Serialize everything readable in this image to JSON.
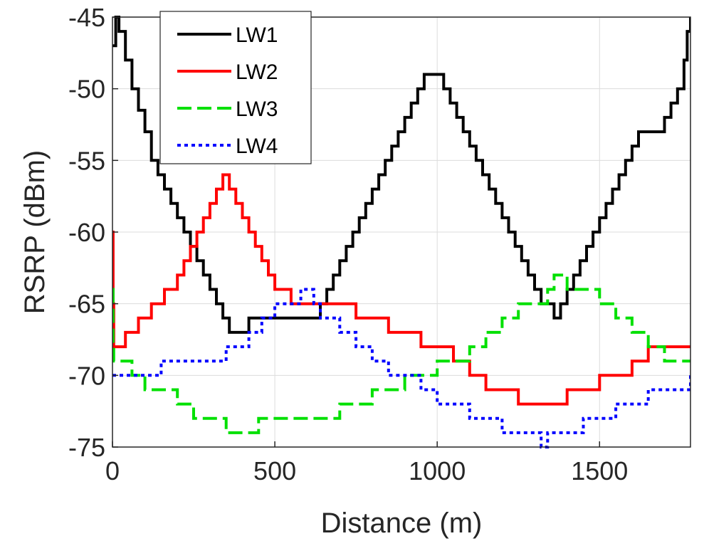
{
  "chart_data": {
    "type": "line",
    "xlabel": "Distance (m)",
    "ylabel": "RSRP (dBm)",
    "xlim": [
      0,
      1780
    ],
    "ylim": [
      -75,
      -45
    ],
    "xticks": [
      0,
      500,
      1000,
      1500
    ],
    "yticks": [
      -45,
      -50,
      -55,
      -60,
      -65,
      -70,
      -75
    ],
    "grid": true,
    "legend_position": "top-left",
    "series": [
      {
        "name": "LW1",
        "color": "#000000",
        "dash": "solid",
        "x": [
          0,
          10,
          20,
          40,
          60,
          80,
          100,
          120,
          140,
          160,
          180,
          200,
          220,
          240,
          260,
          280,
          300,
          320,
          340,
          360,
          380,
          400,
          420,
          440,
          460,
          480,
          500,
          520,
          540,
          560,
          580,
          600,
          620,
          640,
          660,
          680,
          700,
          720,
          740,
          760,
          780,
          800,
          820,
          840,
          860,
          880,
          900,
          920,
          940,
          960,
          980,
          1000,
          1020,
          1040,
          1060,
          1080,
          1100,
          1120,
          1140,
          1160,
          1180,
          1200,
          1220,
          1240,
          1260,
          1280,
          1300,
          1320,
          1340,
          1360,
          1380,
          1400,
          1420,
          1440,
          1460,
          1480,
          1500,
          1520,
          1540,
          1560,
          1580,
          1600,
          1620,
          1640,
          1660,
          1680,
          1700,
          1720,
          1740,
          1760,
          1770,
          1780
        ],
        "y": [
          -47,
          -45,
          -46,
          -48,
          -50,
          -51.5,
          -53,
          -55,
          -56,
          -57,
          -58,
          -59,
          -60,
          -61,
          -62,
          -63,
          -64,
          -65,
          -66,
          -67,
          -67,
          -67,
          -66,
          -66,
          -66,
          -66,
          -66,
          -66,
          -66,
          -66,
          -66,
          -66,
          -66,
          -65,
          -64,
          -63,
          -62,
          -61,
          -60,
          -59,
          -58,
          -57,
          -56,
          -55,
          -54,
          -53,
          -52,
          -51,
          -50,
          -49,
          -49,
          -49,
          -50,
          -51,
          -52,
          -53,
          -54,
          -55,
          -56,
          -57,
          -58,
          -59,
          -60,
          -61,
          -62,
          -63,
          -64,
          -65,
          -65,
          -66,
          -65,
          -64,
          -63,
          -62,
          -61,
          -60,
          -59,
          -58,
          -57,
          -56,
          -55,
          -54,
          -53,
          -53,
          -53,
          -53,
          -52,
          -51,
          -50,
          -48,
          -46,
          -45
        ]
      },
      {
        "name": "LW2",
        "color": "#ff0000",
        "dash": "solid",
        "x": [
          0,
          2,
          4,
          20,
          40,
          60,
          80,
          100,
          120,
          140,
          160,
          180,
          200,
          220,
          240,
          260,
          280,
          300,
          320,
          340,
          360,
          380,
          400,
          420,
          440,
          460,
          480,
          500,
          550,
          600,
          650,
          700,
          750,
          800,
          850,
          900,
          950,
          1000,
          1050,
          1100,
          1150,
          1200,
          1250,
          1300,
          1350,
          1400,
          1450,
          1500,
          1550,
          1600,
          1650,
          1700,
          1780
        ],
        "y": [
          -60,
          -65,
          -68,
          -68,
          -67,
          -67,
          -66,
          -66,
          -65,
          -65,
          -64,
          -64,
          -63,
          -62,
          -61,
          -60,
          -59,
          -58,
          -57,
          -56,
          -57,
          -58,
          -59,
          -60,
          -61,
          -62,
          -63,
          -64,
          -65,
          -65,
          -65,
          -65,
          -66,
          -66,
          -67,
          -67,
          -68,
          -68,
          -69,
          -70,
          -71,
          -71,
          -72,
          -72,
          -72,
          -71,
          -71,
          -70,
          -70,
          -69,
          -68,
          -68,
          -68
        ]
      },
      {
        "name": "LW3",
        "color": "#00e000",
        "dash": "dashed",
        "x": [
          0,
          2,
          4,
          20,
          60,
          100,
          150,
          200,
          250,
          300,
          350,
          400,
          450,
          500,
          550,
          600,
          650,
          700,
          750,
          800,
          850,
          900,
          950,
          1000,
          1050,
          1100,
          1150,
          1200,
          1250,
          1300,
          1340,
          1360,
          1400,
          1450,
          1500,
          1550,
          1600,
          1650,
          1700,
          1780
        ],
        "y": [
          -64,
          -68,
          -69,
          -69,
          -70,
          -71,
          -71,
          -72,
          -73,
          -73,
          -74,
          -74,
          -73,
          -73,
          -73,
          -73,
          -73,
          -72,
          -72,
          -71,
          -71,
          -70,
          -70,
          -69,
          -69,
          -68,
          -67,
          -66,
          -65,
          -65,
          -64,
          -63,
          -64,
          -64,
          -65,
          -66,
          -67,
          -68,
          -69,
          -69
        ]
      },
      {
        "name": "LW4",
        "color": "#0000ff",
        "dash": "dotted",
        "x": [
          0,
          2,
          4,
          50,
          100,
          150,
          200,
          250,
          300,
          350,
          380,
          420,
          460,
          500,
          540,
          580,
          600,
          620,
          640,
          660,
          700,
          750,
          800,
          850,
          900,
          950,
          1000,
          1050,
          1100,
          1150,
          1200,
          1250,
          1300,
          1320,
          1340,
          1360,
          1400,
          1450,
          1500,
          1550,
          1600,
          1650,
          1700,
          1780
        ],
        "y": [
          -70,
          -70,
          -70,
          -70,
          -70,
          -69,
          -69,
          -69,
          -69,
          -68,
          -68,
          -67,
          -66,
          -65,
          -65,
          -64,
          -64,
          -65,
          -66,
          -66,
          -67,
          -68,
          -69,
          -70,
          -70,
          -71,
          -72,
          -72,
          -73,
          -73,
          -74,
          -74,
          -74,
          -75,
          -74,
          -74,
          -74,
          -73,
          -73,
          -72,
          -72,
          -71,
          -71,
          -70
        ]
      }
    ]
  }
}
